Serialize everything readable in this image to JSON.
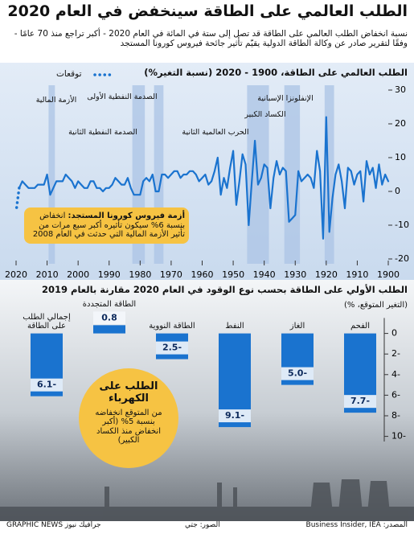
{
  "header": {
    "title": "الطلب العالمي على الطاقة سينخفض في العام 2020",
    "subtitle": "نسبة انخفاض الطلب العالمي على الطاقة قد تصل إلى ستة في المائة في العام 2020 - أكبر تراجع منذ 70 عامًا - وفقًا لتقرير صادر عن وكالة الطاقة الدولية يقيّم تأثير جائحة فيروس كورونا المستجد"
  },
  "chart_data": [
    {
      "type": "line",
      "title": "الطلب العالمي على الطاقة، 1900 - 2020 (نسبة التغير%)",
      "xlim": [
        2020,
        1900
      ],
      "xticks": [
        2020,
        2010,
        2000,
        1990,
        1980,
        1970,
        1960,
        1950,
        1940,
        1930,
        1920,
        1910,
        1900
      ],
      "ylim": [
        -20,
        30
      ],
      "yticks": [
        30,
        20,
        10,
        0,
        -10,
        -20
      ],
      "grid": false,
      "legend": "top-left",
      "series": [
        {
          "color": "#1a73cf",
          "style": "solid",
          "x": [
            1900,
            1901,
            1902,
            1903,
            1904,
            1905,
            1906,
            1907,
            1908,
            1909,
            1910,
            1911,
            1912,
            1913,
            1914,
            1915,
            1916,
            1917,
            1918,
            1919,
            1920,
            1921,
            1922,
            1923,
            1924,
            1925,
            1926,
            1927,
            1928,
            1929,
            1930,
            1931,
            1932,
            1933,
            1934,
            1935,
            1936,
            1937,
            1938,
            1939,
            1940,
            1941,
            1942,
            1943,
            1944,
            1945,
            1946,
            1947,
            1948,
            1949,
            1950,
            1951,
            1952,
            1953,
            1954,
            1955,
            1956,
            1957,
            1958,
            1959,
            1960,
            1961,
            1962,
            1963,
            1964,
            1965,
            1966,
            1967,
            1968,
            1969,
            1970,
            1971,
            1972,
            1973,
            1974,
            1975,
            1976,
            1977,
            1978,
            1979,
            1980,
            1981,
            1982,
            1983,
            1984,
            1985,
            1986,
            1987,
            1988,
            1989,
            1990,
            1991,
            1992,
            1993,
            1994,
            1995,
            1996,
            1997,
            1998,
            1999,
            2000,
            2001,
            2002,
            2003,
            2004,
            2005,
            2006,
            2007,
            2008,
            2009,
            2010,
            2011,
            2012,
            2013,
            2014,
            2015,
            2016,
            2017,
            2018,
            2019
          ],
          "values": [
            3,
            5,
            2,
            8,
            1,
            7,
            5,
            9,
            -3,
            6,
            5,
            2,
            6,
            7,
            -5,
            3,
            8,
            5,
            -2,
            -12,
            22,
            -14,
            6,
            12,
            1,
            4,
            5,
            4,
            3,
            6,
            -7,
            -8,
            -9,
            6,
            7,
            5,
            9,
            4,
            -5,
            7,
            8,
            4,
            2,
            15,
            3,
            -10,
            8,
            11,
            3,
            -4,
            12,
            7,
            1,
            4,
            -1,
            10,
            6,
            3,
            2,
            5,
            4,
            3,
            5,
            6,
            6,
            5,
            5,
            4,
            6,
            6,
            5,
            4,
            5,
            5,
            0,
            0,
            5,
            3,
            4,
            3,
            -1,
            -1,
            -1,
            1,
            4,
            2,
            2,
            3,
            4,
            2,
            1,
            1,
            0,
            1,
            1,
            3,
            3,
            1,
            1,
            2,
            3,
            1,
            3,
            4,
            5,
            3,
            3,
            3,
            1,
            -1,
            5,
            2,
            2,
            2,
            1,
            1,
            1,
            2,
            3,
            1
          ]
        },
        {
          "name": "توقعات",
          "color": "#1a73cf",
          "style": "dotted",
          "x": [
            2019,
            2020
          ],
          "values": [
            1,
            -6
          ]
        }
      ],
      "annotations": [
        {
          "text": "الأزمة المالية",
          "span": [
            2008,
            2009
          ]
        },
        {
          "text": "الصدمة النفطية الأولى",
          "span": [
            1973,
            1975
          ]
        },
        {
          "text": "الصدمة النفطية الثانية",
          "span": [
            1979,
            1982
          ]
        },
        {
          "text": "الحرب العالمية الثانية",
          "span": [
            1939,
            1945
          ]
        },
        {
          "text": "الكساد الكبير",
          "span": [
            1929,
            1933
          ]
        },
        {
          "text": "الإنفلونزا الإسبانية",
          "span": [
            1918,
            1920
          ]
        }
      ],
      "callout": {
        "highlight": "أزمة فيروس كورونا المستجد:",
        "text": "انخفاض بنسبة 6% سيكون تأثيره أكبر سبع مرات من تأثير الأزمة المالية التي حدثت في العام 2008"
      }
    },
    {
      "type": "bar",
      "title": "الطلب الأولي على الطاقة بحسب نوع الوقود في العام 2020 مقارنة بالعام 2019",
      "y_label": "(التغير المتوقع، %)",
      "categories": [
        "الفحم",
        "الغاز",
        "النفط",
        "الطاقة النووية",
        "الطاقة المتجددة",
        "إجمالي الطلب على الطاقة"
      ],
      "values": [
        -7.7,
        -5.0,
        -9.1,
        -2.5,
        0.8,
        -6.1
      ],
      "value_labels": [
        "7.7-",
        "5.0-",
        "9.1-",
        "2.5-",
        "0.8",
        "6.1-"
      ],
      "color": "#1a73cf",
      "ylim": [
        -10.5,
        1.5
      ],
      "yticks": [
        0,
        {
          "value": -2,
          "label": "2-"
        },
        {
          "value": -4,
          "label": "4-"
        },
        {
          "value": -6,
          "label": "6-"
        },
        {
          "value": -8,
          "label": "8-"
        },
        {
          "value": -10,
          "label": "10-"
        }
      ],
      "callout": {
        "title": "الطلب على الكهرباء",
        "text": "من المتوقع انخفاضه بنسبة 5% (أكبر انخفاض منذ الكساد الكبير)"
      }
    }
  ],
  "footer": {
    "source": "المصدر: Business Insider, IEA",
    "photos": "الصور: جتي",
    "brand": "GRAPHIC NEWS جرافيك نيوز"
  }
}
